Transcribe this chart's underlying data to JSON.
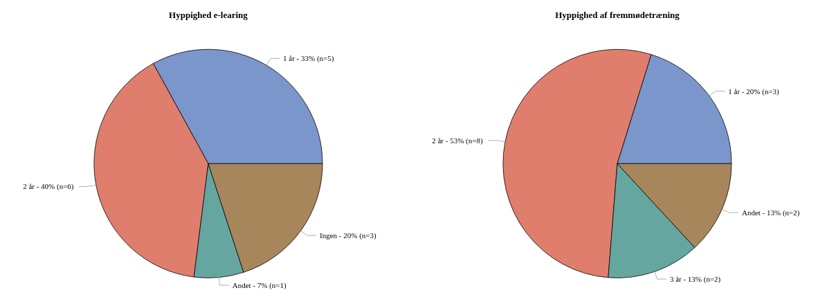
{
  "chart_data": [
    {
      "type": "pie",
      "title": "Hyppighed e-learing",
      "categories": [
        "1 år",
        "2 år",
        "Andet",
        "Ingen"
      ],
      "values": [
        33,
        40,
        7,
        20
      ],
      "colors": [
        "#7b96cb",
        "#e07e6e",
        "#66a6a0",
        "#a8865c"
      ],
      "value_labels": [
        "33%  (n=5)",
        "40%  (n=6)",
        "7%  (n=1)",
        "20%  (n=3)"
      ]
    },
    {
      "type": "pie",
      "title": "Hyppighed af fremmødetræning",
      "categories": [
        "1 år",
        "2 år",
        "3 år",
        "Andet"
      ],
      "values": [
        20,
        53,
        13,
        13
      ],
      "colors": [
        "#7b96cb",
        "#e07e6e",
        "#66a6a0",
        "#a8865c"
      ],
      "value_labels": [
        "20%  (n=3)",
        "53%  (n=8)",
        "13%  (n=2)",
        "13%  (n=2)"
      ]
    }
  ]
}
